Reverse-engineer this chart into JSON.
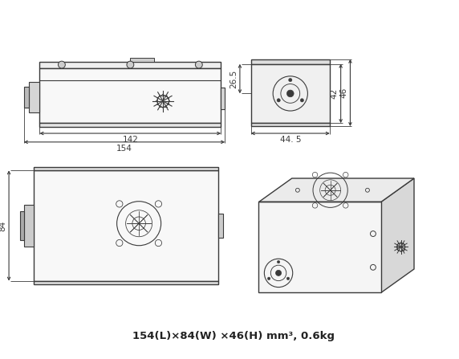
{
  "title": "154(L)×84(W) ×46(H) mm³, 0.6kg",
  "bg_color": "#ffffff",
  "line_color": "#3a3a3a",
  "dim_142": "142",
  "dim_154": "154",
  "dim_44_5": "44. 5",
  "dim_26_5": "26.5",
  "dim_42": "42",
  "dim_46": "46",
  "dim_84": "84"
}
